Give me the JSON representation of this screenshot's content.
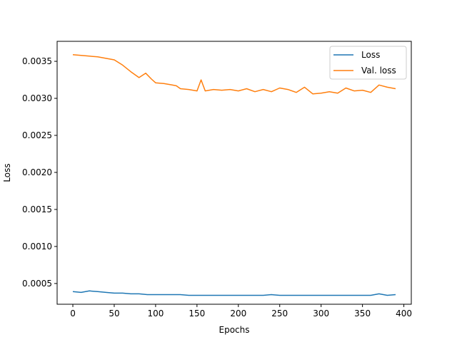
{
  "chart_data": {
    "type": "line",
    "xlabel": "Epochs",
    "ylabel": "Loss",
    "xlim": [
      -19,
      409
    ],
    "ylim": [
      0.00022,
      0.00377
    ],
    "xticks": [
      0,
      50,
      100,
      150,
      200,
      250,
      300,
      350,
      400
    ],
    "yticks": [
      0.0005,
      0.001,
      0.0015,
      0.002,
      0.0025,
      0.003,
      0.0035
    ],
    "ytick_labels": [
      "0.0005",
      "0.0010",
      "0.0015",
      "0.0020",
      "0.0025",
      "0.0030",
      "0.0035"
    ],
    "legend_placement": "top-right",
    "grid": false,
    "series": [
      {
        "name": "Loss",
        "color": "#1f77b4",
        "x": [
          0,
          10,
          20,
          30,
          40,
          50,
          60,
          70,
          80,
          90,
          100,
          110,
          120,
          130,
          140,
          150,
          160,
          170,
          180,
          190,
          200,
          210,
          220,
          230,
          240,
          250,
          260,
          270,
          280,
          290,
          300,
          310,
          320,
          330,
          340,
          350,
          360,
          370,
          380,
          390
        ],
        "y": [
          0.00039,
          0.00038,
          0.0004,
          0.00039,
          0.00038,
          0.00037,
          0.00037,
          0.00036,
          0.00036,
          0.00035,
          0.00035,
          0.00035,
          0.00035,
          0.00035,
          0.00034,
          0.00034,
          0.00034,
          0.00034,
          0.00034,
          0.00034,
          0.00034,
          0.00034,
          0.00034,
          0.00034,
          0.00035,
          0.00034,
          0.00034,
          0.00034,
          0.00034,
          0.00034,
          0.00034,
          0.00034,
          0.00034,
          0.00034,
          0.00034,
          0.00034,
          0.00034,
          0.00036,
          0.00034,
          0.00035
        ]
      },
      {
        "name": "Val. loss",
        "color": "#ff7f0e",
        "x": [
          0,
          10,
          20,
          30,
          40,
          50,
          60,
          70,
          80,
          88,
          95,
          100,
          110,
          120,
          125,
          130,
          140,
          150,
          155,
          160,
          170,
          180,
          190,
          200,
          210,
          220,
          230,
          240,
          250,
          260,
          270,
          280,
          290,
          300,
          310,
          320,
          330,
          340,
          350,
          360,
          370,
          380,
          390
        ],
        "y": [
          0.00359,
          0.00358,
          0.00357,
          0.00356,
          0.00354,
          0.00352,
          0.00345,
          0.00336,
          0.00328,
          0.00334,
          0.00326,
          0.00321,
          0.0032,
          0.00318,
          0.00317,
          0.00313,
          0.00312,
          0.0031,
          0.00325,
          0.0031,
          0.00312,
          0.00311,
          0.00312,
          0.0031,
          0.00313,
          0.00309,
          0.00312,
          0.00309,
          0.00314,
          0.00312,
          0.00308,
          0.00315,
          0.00306,
          0.00307,
          0.00309,
          0.00307,
          0.00314,
          0.0031,
          0.00311,
          0.00308,
          0.00318,
          0.00315,
          0.00313
        ]
      }
    ]
  }
}
